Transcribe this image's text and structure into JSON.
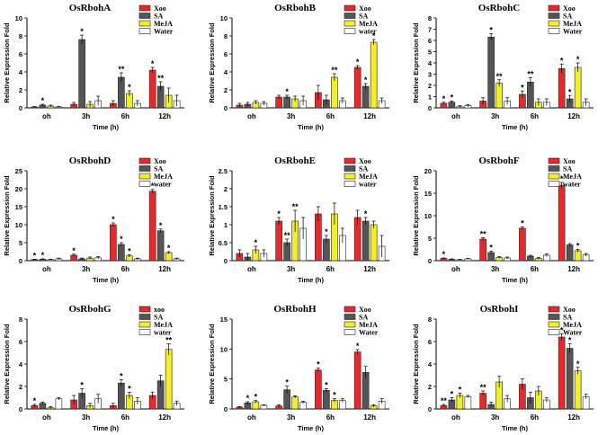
{
  "colors": {
    "Xoo": "#e8282b",
    "SA": "#555555",
    "MeJA": "#f2ef2a",
    "Water": "#ffffff",
    "stroke": "#222222"
  },
  "chart_data": [
    {
      "type": "bar",
      "title": "OsRbohA",
      "categories": [
        "oh",
        "3h",
        "6h",
        "12h"
      ],
      "legend": [
        "Xoo",
        "SA",
        "MeJA",
        "Water"
      ],
      "xlabel": "Time (h)",
      "ylabel": "Relative Expression Fold",
      "ylim": [
        0,
        10
      ],
      "yticks": [
        0,
        2,
        4,
        6,
        8,
        10
      ],
      "series": [
        {
          "name": "Xoo",
          "values": [
            0.1,
            0.4,
            0.5,
            4.2
          ],
          "errors": [
            0.05,
            0.2,
            0.3,
            0.3
          ],
          "sig": [
            "",
            "",
            "",
            "*"
          ]
        },
        {
          "name": "SA",
          "values": [
            0.3,
            7.6,
            3.4,
            2.4
          ],
          "errors": [
            0.1,
            0.5,
            0.5,
            0.5
          ],
          "sig": [
            "*",
            "*",
            "**",
            "**"
          ]
        },
        {
          "name": "MeJA",
          "values": [
            0.2,
            0.4,
            1.6,
            1.4
          ],
          "errors": [
            0.1,
            0.3,
            0.3,
            0.8
          ],
          "sig": [
            "",
            "",
            "*",
            ""
          ]
        },
        {
          "name": "Water",
          "values": [
            0.1,
            0.8,
            0.5,
            0.8
          ],
          "errors": [
            0.05,
            0.5,
            0.3,
            0.6
          ],
          "sig": [
            "",
            "",
            "",
            ""
          ]
        }
      ]
    },
    {
      "type": "bar",
      "title": "OsRbohB",
      "categories": [
        "oh",
        "3h",
        "6h",
        "12h"
      ],
      "legend": [
        "Xoo",
        "SA",
        "MeJA",
        "water"
      ],
      "xlabel": "Time (h)",
      "ylabel": "Relative Expression Fold",
      "ylim": [
        0,
        10
      ],
      "yticks": [
        0,
        2,
        4,
        6,
        8,
        10
      ],
      "series": [
        {
          "name": "Xoo",
          "values": [
            0.3,
            1.2,
            1.7,
            4.5
          ],
          "errors": [
            0.2,
            0.2,
            0.8,
            0.2
          ],
          "sig": [
            "",
            "",
            "",
            "*"
          ]
        },
        {
          "name": "SA",
          "values": [
            0.4,
            1.2,
            0.9,
            2.4
          ],
          "errors": [
            0.2,
            0.2,
            0.5,
            0.3
          ],
          "sig": [
            "",
            "*",
            "",
            "*"
          ]
        },
        {
          "name": "MeJA",
          "values": [
            0.6,
            1.0,
            3.4,
            7.3
          ],
          "errors": [
            0.2,
            0.3,
            0.4,
            0.3
          ],
          "sig": [
            "",
            "",
            "**",
            "*"
          ]
        },
        {
          "name": "water",
          "values": [
            0.5,
            0.8,
            0.8,
            0.8
          ],
          "errors": [
            0.2,
            0.5,
            0.3,
            0.3
          ],
          "sig": [
            "",
            "",
            "",
            ""
          ]
        }
      ]
    },
    {
      "type": "bar",
      "title": "OsRbohC",
      "categories": [
        "oh",
        "3h",
        "6h",
        "12h"
      ],
      "legend": [
        "Xoo",
        "SA",
        "MeJA",
        "Water"
      ],
      "xlabel": "Time (h)",
      "ylabel": "Relative Expression Fold",
      "ylim": [
        0,
        8
      ],
      "yticks": [
        0,
        1,
        2,
        3,
        4,
        5,
        6,
        7,
        8
      ],
      "series": [
        {
          "name": "Xoo",
          "values": [
            0.4,
            0.6,
            1.2,
            3.5
          ],
          "errors": [
            0.1,
            0.3,
            0.3,
            0.4
          ],
          "sig": [
            "*",
            "",
            "*",
            "*"
          ]
        },
        {
          "name": "SA",
          "values": [
            0.5,
            6.3,
            2.3,
            0.8
          ],
          "errors": [
            0.1,
            0.3,
            0.4,
            0.3
          ],
          "sig": [
            "*",
            "*",
            "**",
            "*"
          ]
        },
        {
          "name": "MeJA",
          "values": [
            0.1,
            2.2,
            0.5,
            3.6
          ],
          "errors": [
            0.1,
            0.3,
            0.3,
            0.4
          ],
          "sig": [
            "",
            "**",
            "",
            "*"
          ]
        },
        {
          "name": "Water",
          "values": [
            0.2,
            0.6,
            0.5,
            0.5
          ],
          "errors": [
            0.1,
            0.3,
            0.3,
            0.3
          ],
          "sig": [
            "",
            "",
            "",
            ""
          ]
        }
      ]
    },
    {
      "type": "bar",
      "title": "OsRbohD",
      "categories": [
        "oh",
        "3h",
        "6h",
        "12h"
      ],
      "legend": [
        "Xoo",
        "SA",
        "MeJA",
        "water"
      ],
      "xlabel": "Time (h)",
      "ylabel": "Relative Expression Fold",
      "ylim": [
        0,
        25
      ],
      "yticks": [
        0,
        5,
        10,
        15,
        20,
        25
      ],
      "series": [
        {
          "name": "Xoo",
          "values": [
            0.3,
            1.5,
            10.0,
            19.3
          ],
          "errors": [
            0.1,
            0.3,
            0.5,
            0.5
          ],
          "sig": [
            "*",
            "*",
            "*",
            "*"
          ]
        },
        {
          "name": "SA",
          "values": [
            0.4,
            0.5,
            4.5,
            8.3
          ],
          "errors": [
            0.1,
            0.2,
            0.5,
            0.5
          ],
          "sig": [
            "*",
            "",
            "*",
            "*"
          ]
        },
        {
          "name": "MeJA",
          "values": [
            0.3,
            0.7,
            1.3,
            2.2
          ],
          "errors": [
            0.1,
            0.3,
            0.3,
            0.3
          ],
          "sig": [
            "",
            "",
            "*",
            "*"
          ]
        },
        {
          "name": "water",
          "values": [
            0.5,
            0.8,
            0.5,
            0.5
          ],
          "errors": [
            0.2,
            0.3,
            0.2,
            0.2
          ],
          "sig": [
            "",
            "",
            "",
            ""
          ]
        }
      ]
    },
    {
      "type": "bar",
      "title": "OsRbohE",
      "categories": [
        "oh",
        "3h",
        "6h",
        "12h"
      ],
      "legend": [
        "Xoo",
        "SA",
        "MeJA",
        "water"
      ],
      "xlabel": "Time (h)",
      "ylabel": "Relative Expression Fold",
      "ylim": [
        0,
        2.5
      ],
      "yticks": [
        0,
        0.5,
        1,
        1.5,
        2,
        2.5
      ],
      "series": [
        {
          "name": "Xoo",
          "values": [
            0.2,
            1.1,
            1.3,
            1.2
          ],
          "errors": [
            0.1,
            0.1,
            0.2,
            0.2
          ],
          "sig": [
            "",
            "*",
            "",
            ""
          ]
        },
        {
          "name": "SA",
          "values": [
            0.1,
            0.5,
            0.6,
            1.1
          ],
          "errors": [
            0.1,
            0.1,
            0.1,
            0.1
          ],
          "sig": [
            "",
            "**",
            "*",
            "*"
          ]
        },
        {
          "name": "MeJA",
          "values": [
            0.3,
            1.1,
            1.3,
            1.0
          ],
          "errors": [
            0.1,
            0.3,
            0.3,
            0.1
          ],
          "sig": [
            "*",
            "**",
            "",
            ""
          ]
        },
        {
          "name": "water",
          "values": [
            0.2,
            0.9,
            0.7,
            0.4
          ],
          "errors": [
            0.1,
            0.3,
            0.2,
            0.3
          ],
          "sig": [
            "",
            "",
            "",
            ""
          ]
        }
      ]
    },
    {
      "type": "bar",
      "title": "OsRbohF",
      "categories": [
        "oh",
        "3h",
        "6h",
        "12h"
      ],
      "legend": [
        "Xoo",
        "SA",
        "MeJA",
        "water"
      ],
      "xlabel": "Time (h)",
      "ylabel": "Relative Expression Fold",
      "ylim": [
        0,
        20
      ],
      "yticks": [
        0,
        5,
        10,
        15,
        20
      ],
      "series": [
        {
          "name": "Xoo",
          "values": [
            0.5,
            4.8,
            7.2,
            16.8
          ],
          "errors": [
            0.1,
            0.3,
            0.3,
            0.6
          ],
          "sig": [
            "*",
            "**",
            "*",
            "*"
          ]
        },
        {
          "name": "SA",
          "values": [
            0.3,
            1.8,
            1.0,
            3.5
          ],
          "errors": [
            0.1,
            0.3,
            0.2,
            0.3
          ],
          "sig": [
            "",
            "*",
            "",
            ""
          ]
        },
        {
          "name": "MeJA",
          "values": [
            0.2,
            0.7,
            0.5,
            2.2
          ],
          "errors": [
            0.1,
            0.2,
            0.2,
            0.3
          ],
          "sig": [
            "",
            "",
            "",
            "*"
          ]
        },
        {
          "name": "water",
          "values": [
            0.4,
            0.6,
            1.2,
            1.3
          ],
          "errors": [
            0.1,
            0.2,
            0.3,
            0.3
          ],
          "sig": [
            "",
            "",
            "",
            ""
          ]
        }
      ]
    },
    {
      "type": "bar",
      "title": "OsRbohG",
      "categories": [
        "oh",
        "3h",
        "6h",
        "12h"
      ],
      "legend": [
        "xoo",
        "SA",
        "MeJA",
        "water"
      ],
      "xlabel": "Time (h)",
      "ylabel": "Relative Expression Fold",
      "ylim": [
        0,
        8
      ],
      "yticks": [
        0,
        2,
        4,
        6,
        8
      ],
      "series": [
        {
          "name": "xoo",
          "values": [
            0.3,
            0.8,
            0.3,
            1.2
          ],
          "errors": [
            0.1,
            0.4,
            0.2,
            0.3
          ],
          "sig": [
            "*",
            "",
            "",
            ""
          ]
        },
        {
          "name": "SA",
          "values": [
            0.5,
            1.4,
            2.3,
            2.5
          ],
          "errors": [
            0.1,
            0.4,
            0.3,
            0.5
          ],
          "sig": [
            "",
            "*",
            "*",
            ""
          ]
        },
        {
          "name": "MeJA",
          "values": [
            0.1,
            0.3,
            1.2,
            5.3
          ],
          "errors": [
            0.1,
            0.2,
            0.3,
            0.5
          ],
          "sig": [
            "",
            "",
            "*",
            "**"
          ]
        },
        {
          "name": "water",
          "values": [
            0.9,
            0.9,
            0.7,
            0.5
          ],
          "errors": [
            0.1,
            0.4,
            0.3,
            0.2
          ],
          "sig": [
            "",
            "",
            "",
            ""
          ]
        }
      ]
    },
    {
      "type": "bar",
      "title": "OsRbohH",
      "categories": [
        "oh",
        "3h",
        "6h",
        "12h"
      ],
      "legend": [
        "Xoo",
        "SA",
        "MeJA",
        "Water"
      ],
      "xlabel": "Time (h)",
      "ylabel": "Relative Expression Fold",
      "ylim": [
        0,
        15
      ],
      "yticks": [
        0,
        5,
        10,
        15
      ],
      "series": [
        {
          "name": "Xoo",
          "values": [
            0.3,
            0.5,
            6.5,
            9.5
          ],
          "errors": [
            0.1,
            0.2,
            0.3,
            0.4
          ],
          "sig": [
            "",
            "",
            "*",
            "*"
          ]
        },
        {
          "name": "SA",
          "values": [
            1.0,
            3.2,
            3.1,
            6.1
          ],
          "errors": [
            0.2,
            0.6,
            0.3,
            1.0
          ],
          "sig": [
            "*",
            "*",
            "*",
            ""
          ]
        },
        {
          "name": "MeJA",
          "values": [
            1.2,
            2.0,
            1.4,
            0.5
          ],
          "errors": [
            0.2,
            0.2,
            0.3,
            0.2
          ],
          "sig": [
            "*",
            "",
            "*",
            ""
          ]
        },
        {
          "name": "Water",
          "values": [
            0.6,
            1.1,
            1.4,
            1.3
          ],
          "errors": [
            0.1,
            0.2,
            0.3,
            0.4
          ],
          "sig": [
            "",
            "",
            "",
            ""
          ]
        }
      ]
    },
    {
      "type": "bar",
      "title": "OsRbohI",
      "categories": [
        "oh",
        "3h",
        "6h",
        "12h"
      ],
      "legend": [
        "Xoo",
        "SA",
        "MeJA",
        "Water"
      ],
      "xlabel": "Time (h)",
      "ylabel": "Relative Expression Fold",
      "ylim": [
        0,
        8
      ],
      "yticks": [
        0,
        2,
        4,
        6,
        8
      ],
      "series": [
        {
          "name": "Xoo",
          "values": [
            0.3,
            1.4,
            2.2,
            6.4
          ],
          "errors": [
            0.1,
            0.2,
            0.5,
            0.3
          ],
          "sig": [
            "**",
            "**",
            "",
            "*"
          ]
        },
        {
          "name": "SA",
          "values": [
            0.8,
            0.4,
            1.0,
            5.4
          ],
          "errors": [
            0.2,
            0.2,
            0.5,
            0.4
          ],
          "sig": [
            "*",
            "",
            "",
            "*"
          ]
        },
        {
          "name": "MeJA",
          "values": [
            1.2,
            2.4,
            1.6,
            3.4
          ],
          "errors": [
            0.2,
            0.5,
            0.4,
            0.3
          ],
          "sig": [
            "*",
            "",
            "",
            "*"
          ]
        },
        {
          "name": "Water",
          "values": [
            1.1,
            0.9,
            0.8,
            1.1
          ],
          "errors": [
            0.1,
            0.3,
            0.2,
            0.2
          ],
          "sig": [
            "",
            "",
            "",
            ""
          ]
        }
      ]
    }
  ]
}
